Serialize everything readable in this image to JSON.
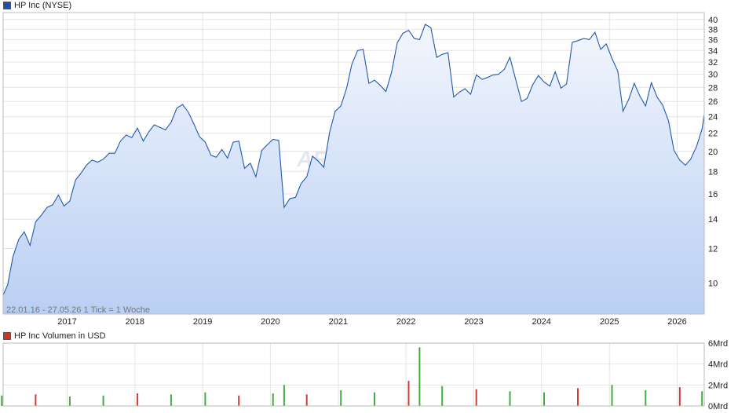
{
  "price_panel": {
    "legend_label": "HP Inc (NYSE)",
    "legend_color": "#1f4fa8",
    "info_text": "22.01.16 - 27.05.26   1 Tick = 1 Woche",
    "watermark": "ARIVA.DE",
    "line_color": "#1f5ab0",
    "fill_top_color": "#f3f6fd",
    "fill_bottom_color": "#b9cff3"
  },
  "volume_panel": {
    "legend_label": "HP Inc Volumen in USD",
    "legend_color": "#c0392b",
    "up_color": "#3fae3f",
    "down_color": "#d23a3a"
  },
  "chart_data": [
    {
      "type": "line",
      "title": "HP Inc (NYSE)",
      "y_scale": "log",
      "ylim": [
        8.5,
        41.5
      ],
      "y_ticks": [
        10,
        12,
        14,
        16,
        18,
        20,
        22,
        24,
        26,
        28,
        30,
        32,
        34,
        36,
        38,
        40
      ],
      "x_range": [
        "2016-01-22",
        "2026-05-27"
      ],
      "x_ticks": [
        "2017",
        "2018",
        "2019",
        "2020",
        "2021",
        "2022",
        "2023",
        "2024",
        "2025",
        "2026"
      ],
      "grid": true,
      "series": [
        {
          "name": "HP Inc (NYSE)",
          "x": [
            "2016-01-22",
            "2016-02-15",
            "2016-03-15",
            "2016-04-15",
            "2016-05-15",
            "2016-06-15",
            "2016-07-15",
            "2016-08-15",
            "2016-09-15",
            "2016-10-15",
            "2016-11-15",
            "2016-12-15",
            "2017-01-15",
            "2017-02-15",
            "2017-03-15",
            "2017-04-15",
            "2017-05-15",
            "2017-06-15",
            "2017-07-15",
            "2017-08-15",
            "2017-09-15",
            "2017-10-15",
            "2017-11-15",
            "2017-12-15",
            "2018-01-15",
            "2018-02-15",
            "2018-03-15",
            "2018-04-15",
            "2018-05-15",
            "2018-06-15",
            "2018-07-15",
            "2018-08-15",
            "2018-09-15",
            "2018-10-15",
            "2018-11-15",
            "2018-12-15",
            "2019-01-15",
            "2019-02-15",
            "2019-03-15",
            "2019-04-15",
            "2019-05-15",
            "2019-06-15",
            "2019-07-15",
            "2019-08-15",
            "2019-09-15",
            "2019-10-15",
            "2019-11-15",
            "2019-12-15",
            "2020-01-15",
            "2020-02-15",
            "2020-03-15",
            "2020-04-15",
            "2020-05-15",
            "2020-06-15",
            "2020-07-15",
            "2020-08-15",
            "2020-09-15",
            "2020-10-15",
            "2020-11-15",
            "2020-12-15",
            "2021-01-15",
            "2021-02-15",
            "2021-03-15",
            "2021-04-15",
            "2021-05-15",
            "2021-06-15",
            "2021-07-15",
            "2021-08-15",
            "2021-09-15",
            "2021-10-15",
            "2021-11-15",
            "2021-12-15",
            "2022-01-15",
            "2022-02-15",
            "2022-03-15",
            "2022-04-15",
            "2022-05-15",
            "2022-06-15",
            "2022-07-15",
            "2022-08-15",
            "2022-09-15",
            "2022-10-15",
            "2022-11-15",
            "2022-12-15",
            "2023-01-15",
            "2023-02-15",
            "2023-03-15",
            "2023-04-15",
            "2023-05-15",
            "2023-06-15",
            "2023-07-15",
            "2023-08-15",
            "2023-09-15",
            "2023-10-15",
            "2023-11-15",
            "2023-12-15",
            "2024-01-15",
            "2024-02-15",
            "2024-03-15",
            "2024-04-15",
            "2024-05-15",
            "2024-06-15",
            "2024-07-15",
            "2024-08-15",
            "2024-09-15",
            "2024-10-15",
            "2024-11-15",
            "2024-12-15",
            "2025-01-15",
            "2025-02-15",
            "2025-03-15",
            "2025-04-15",
            "2025-05-15",
            "2025-06-15",
            "2025-07-15",
            "2025-08-15",
            "2025-09-15",
            "2025-10-15",
            "2025-11-15",
            "2025-12-15",
            "2026-01-15",
            "2026-02-15",
            "2026-03-15",
            "2026-04-15",
            "2026-05-15",
            "2026-05-27"
          ],
          "values": [
            9.4,
            9.9,
            11.5,
            12.6,
            13.1,
            12.2,
            13.8,
            14.3,
            14.9,
            15.1,
            15.9,
            15.0,
            15.4,
            17.2,
            17.8,
            18.6,
            19.1,
            18.9,
            19.2,
            19.8,
            19.8,
            21.1,
            21.8,
            21.5,
            22.6,
            21.1,
            22.1,
            23.0,
            22.7,
            22.4,
            23.3,
            25.1,
            25.6,
            24.6,
            23.1,
            21.6,
            21.0,
            19.6,
            19.4,
            20.2,
            19.3,
            21.0,
            21.1,
            18.3,
            18.8,
            17.5,
            20.1,
            20.7,
            21.3,
            21.2,
            14.9,
            15.6,
            15.7,
            16.9,
            17.5,
            19.5,
            19.0,
            18.4,
            22.1,
            24.7,
            25.4,
            27.9,
            31.6,
            34.0,
            34.2,
            28.6,
            29.1,
            28.3,
            27.4,
            30.3,
            35.4,
            37.2,
            37.8,
            36.2,
            36.0,
            39.0,
            38.3,
            32.8,
            33.3,
            33.6,
            26.6,
            27.3,
            27.8,
            27.0,
            29.9,
            29.2,
            29.5,
            29.9,
            30.0,
            30.8,
            32.8,
            29.2,
            26.0,
            26.4,
            28.4,
            29.8,
            28.8,
            28.2,
            30.4,
            27.9,
            28.5,
            35.5,
            35.8,
            36.2,
            36.0,
            37.4,
            34.2,
            35.2,
            32.6,
            30.5,
            24.7,
            26.3,
            28.6,
            26.7,
            25.4,
            28.7,
            26.6,
            25.5,
            23.5,
            20.1,
            19.1,
            18.6,
            19.2,
            20.5,
            22.5,
            24.3
          ]
        }
      ]
    },
    {
      "type": "bar",
      "title": "HP Inc Volumen in USD",
      "ylim": [
        0,
        6
      ],
      "y_ticks": [
        "0Mrd",
        "2Mrd",
        "4Mrd",
        "6Mrd"
      ],
      "x_range": [
        "2016-01-22",
        "2026-05-27"
      ],
      "grid": true,
      "series": [
        {
          "name": "HP Inc Volumen in USD",
          "unit": "Mrd USD",
          "x": [
            "2016-01",
            "2016-07",
            "2017-01",
            "2017-07",
            "2018-01",
            "2018-07",
            "2019-01",
            "2019-07",
            "2020-01",
            "2020-03",
            "2020-07",
            "2021-01",
            "2021-07",
            "2022-01",
            "2022-03",
            "2022-07",
            "2023-01",
            "2023-07",
            "2024-01",
            "2024-07",
            "2025-01",
            "2025-07",
            "2026-01",
            "2026-05"
          ],
          "values": [
            1.0,
            1.1,
            0.9,
            1.0,
            1.2,
            1.1,
            1.3,
            1.0,
            1.2,
            2.0,
            1.1,
            1.5,
            1.3,
            2.4,
            5.6,
            1.9,
            1.6,
            1.4,
            1.3,
            1.7,
            2.0,
            1.5,
            1.8,
            1.4
          ]
        }
      ]
    }
  ]
}
